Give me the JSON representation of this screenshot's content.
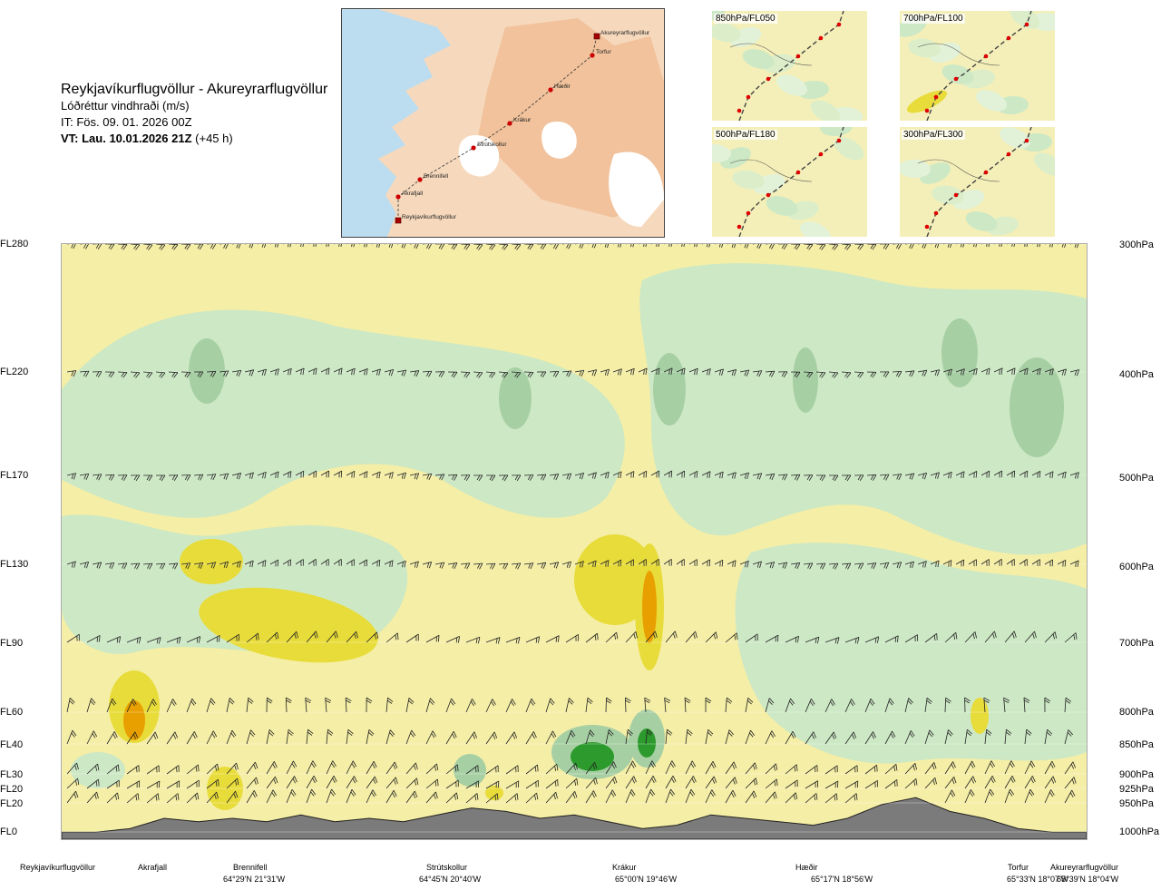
{
  "header": {
    "route": "Reykjavíkurflugvöllur - Akureyrarflugvöllur",
    "product": "Lóðréttur vindhraði (m/s)",
    "issue_time": "IT: Fös. 09. 01. 2026 00Z",
    "valid_time_prefix": "VT: Lau. 10.01.2026 21Z",
    "valid_time_suffix": "(+45 h)"
  },
  "map": {
    "waypoints": [
      {
        "name": "Akureyrarflugvöllur",
        "kind": "airport"
      },
      {
        "name": "Torfur",
        "kind": "waypoint"
      },
      {
        "name": "Hæðir",
        "kind": "waypoint"
      },
      {
        "name": "Krákur",
        "kind": "waypoint"
      },
      {
        "name": "Strútskollur",
        "kind": "waypoint"
      },
      {
        "name": "Brennifell",
        "kind": "waypoint"
      },
      {
        "name": "Akrafjall",
        "kind": "waypoint"
      },
      {
        "name": "Reykjavíkurflugvöllur",
        "kind": "airport"
      }
    ],
    "colors": {
      "sea": "#bcdcef",
      "land": "#f6d9bd",
      "highland": "#efb384",
      "ice": "#ffffff",
      "route": "#cc0000"
    }
  },
  "mini_maps": [
    {
      "label": "850hPa/FL050"
    },
    {
      "label": "700hPa/FL100"
    },
    {
      "label": "500hPa/FL180"
    },
    {
      "label": "300hPa/FL300"
    }
  ],
  "levels": [
    {
      "fl": "FL280",
      "hpa": "300hPa"
    },
    {
      "fl": "FL220",
      "hpa": "400hPa"
    },
    {
      "fl": "FL170",
      "hpa": "500hPa"
    },
    {
      "fl": "FL130",
      "hpa": "600hPa"
    },
    {
      "fl": "FL90",
      "hpa": "700hPa"
    },
    {
      "fl": "FL60",
      "hpa": "800hPa"
    },
    {
      "fl": "FL40",
      "hpa": "850hPa"
    },
    {
      "fl": "FL30",
      "hpa": "900hPa"
    },
    {
      "fl": "FL20",
      "hpa": "925hPa"
    },
    {
      "fl": "FL20",
      "hpa": "950hPa"
    },
    {
      "fl": "FL0",
      "hpa": "1000hPa"
    }
  ],
  "locations": [
    {
      "name": "Reykjavíkurflugvöllur",
      "coord": ""
    },
    {
      "name": "Akrafjall",
      "coord": ""
    },
    {
      "name": "Brennifell",
      "coord": "64°29'N 21°31'W"
    },
    {
      "name": "Strútskollur",
      "coord": "64°45'N 20°40'W"
    },
    {
      "name": "Krákur",
      "coord": "65°00'N 19°46'W"
    },
    {
      "name": "Hæðir",
      "coord": "65°17'N 18°56'W"
    },
    {
      "name": "Torfur",
      "coord": "65°33'N 18°07'W"
    },
    {
      "name": "Akureyrarflugvöllur",
      "coord": "65°39'N 18°04'W"
    }
  ],
  "chart_data": {
    "type": "heatmap",
    "title": "Lóðréttur vindhraði (m/s)",
    "x_categories": [
      "Reykjavíkurflugvöllur",
      "Akrafjall",
      "Brennifell",
      "Strútskollur",
      "Krákur",
      "Hæðir",
      "Torfur",
      "Akureyrarflugvöllur"
    ],
    "y_levels_hpa": [
      300,
      400,
      500,
      600,
      700,
      800,
      850,
      900,
      925,
      950,
      1000
    ],
    "y_levels_fl": [
      "FL280",
      "FL220",
      "FL170",
      "FL130",
      "FL90",
      "FL60",
      "FL40",
      "FL30",
      "FL20",
      "FL20",
      "FL0"
    ],
    "colors": {
      "strong_down": "#e8a000",
      "down": "#e8dc3a",
      "weak_down": "#f5eea6",
      "neutral": "#f3fbe9",
      "weak_up": "#cde8c5",
      "up": "#a7cfa4",
      "strong_up": "#2c9a2c",
      "terrain": "#7b7b7b"
    },
    "terrain_relative": [
      0.01,
      0.01,
      0.02,
      0.05,
      0.04,
      0.05,
      0.04,
      0.06,
      0.04,
      0.05,
      0.04,
      0.06,
      0.08,
      0.07,
      0.05,
      0.06,
      0.04,
      0.02,
      0.03,
      0.06,
      0.05,
      0.04,
      0.03,
      0.05,
      0.09,
      0.11,
      0.07,
      0.05,
      0.02,
      0.01,
      0.01
    ],
    "grid": true
  }
}
